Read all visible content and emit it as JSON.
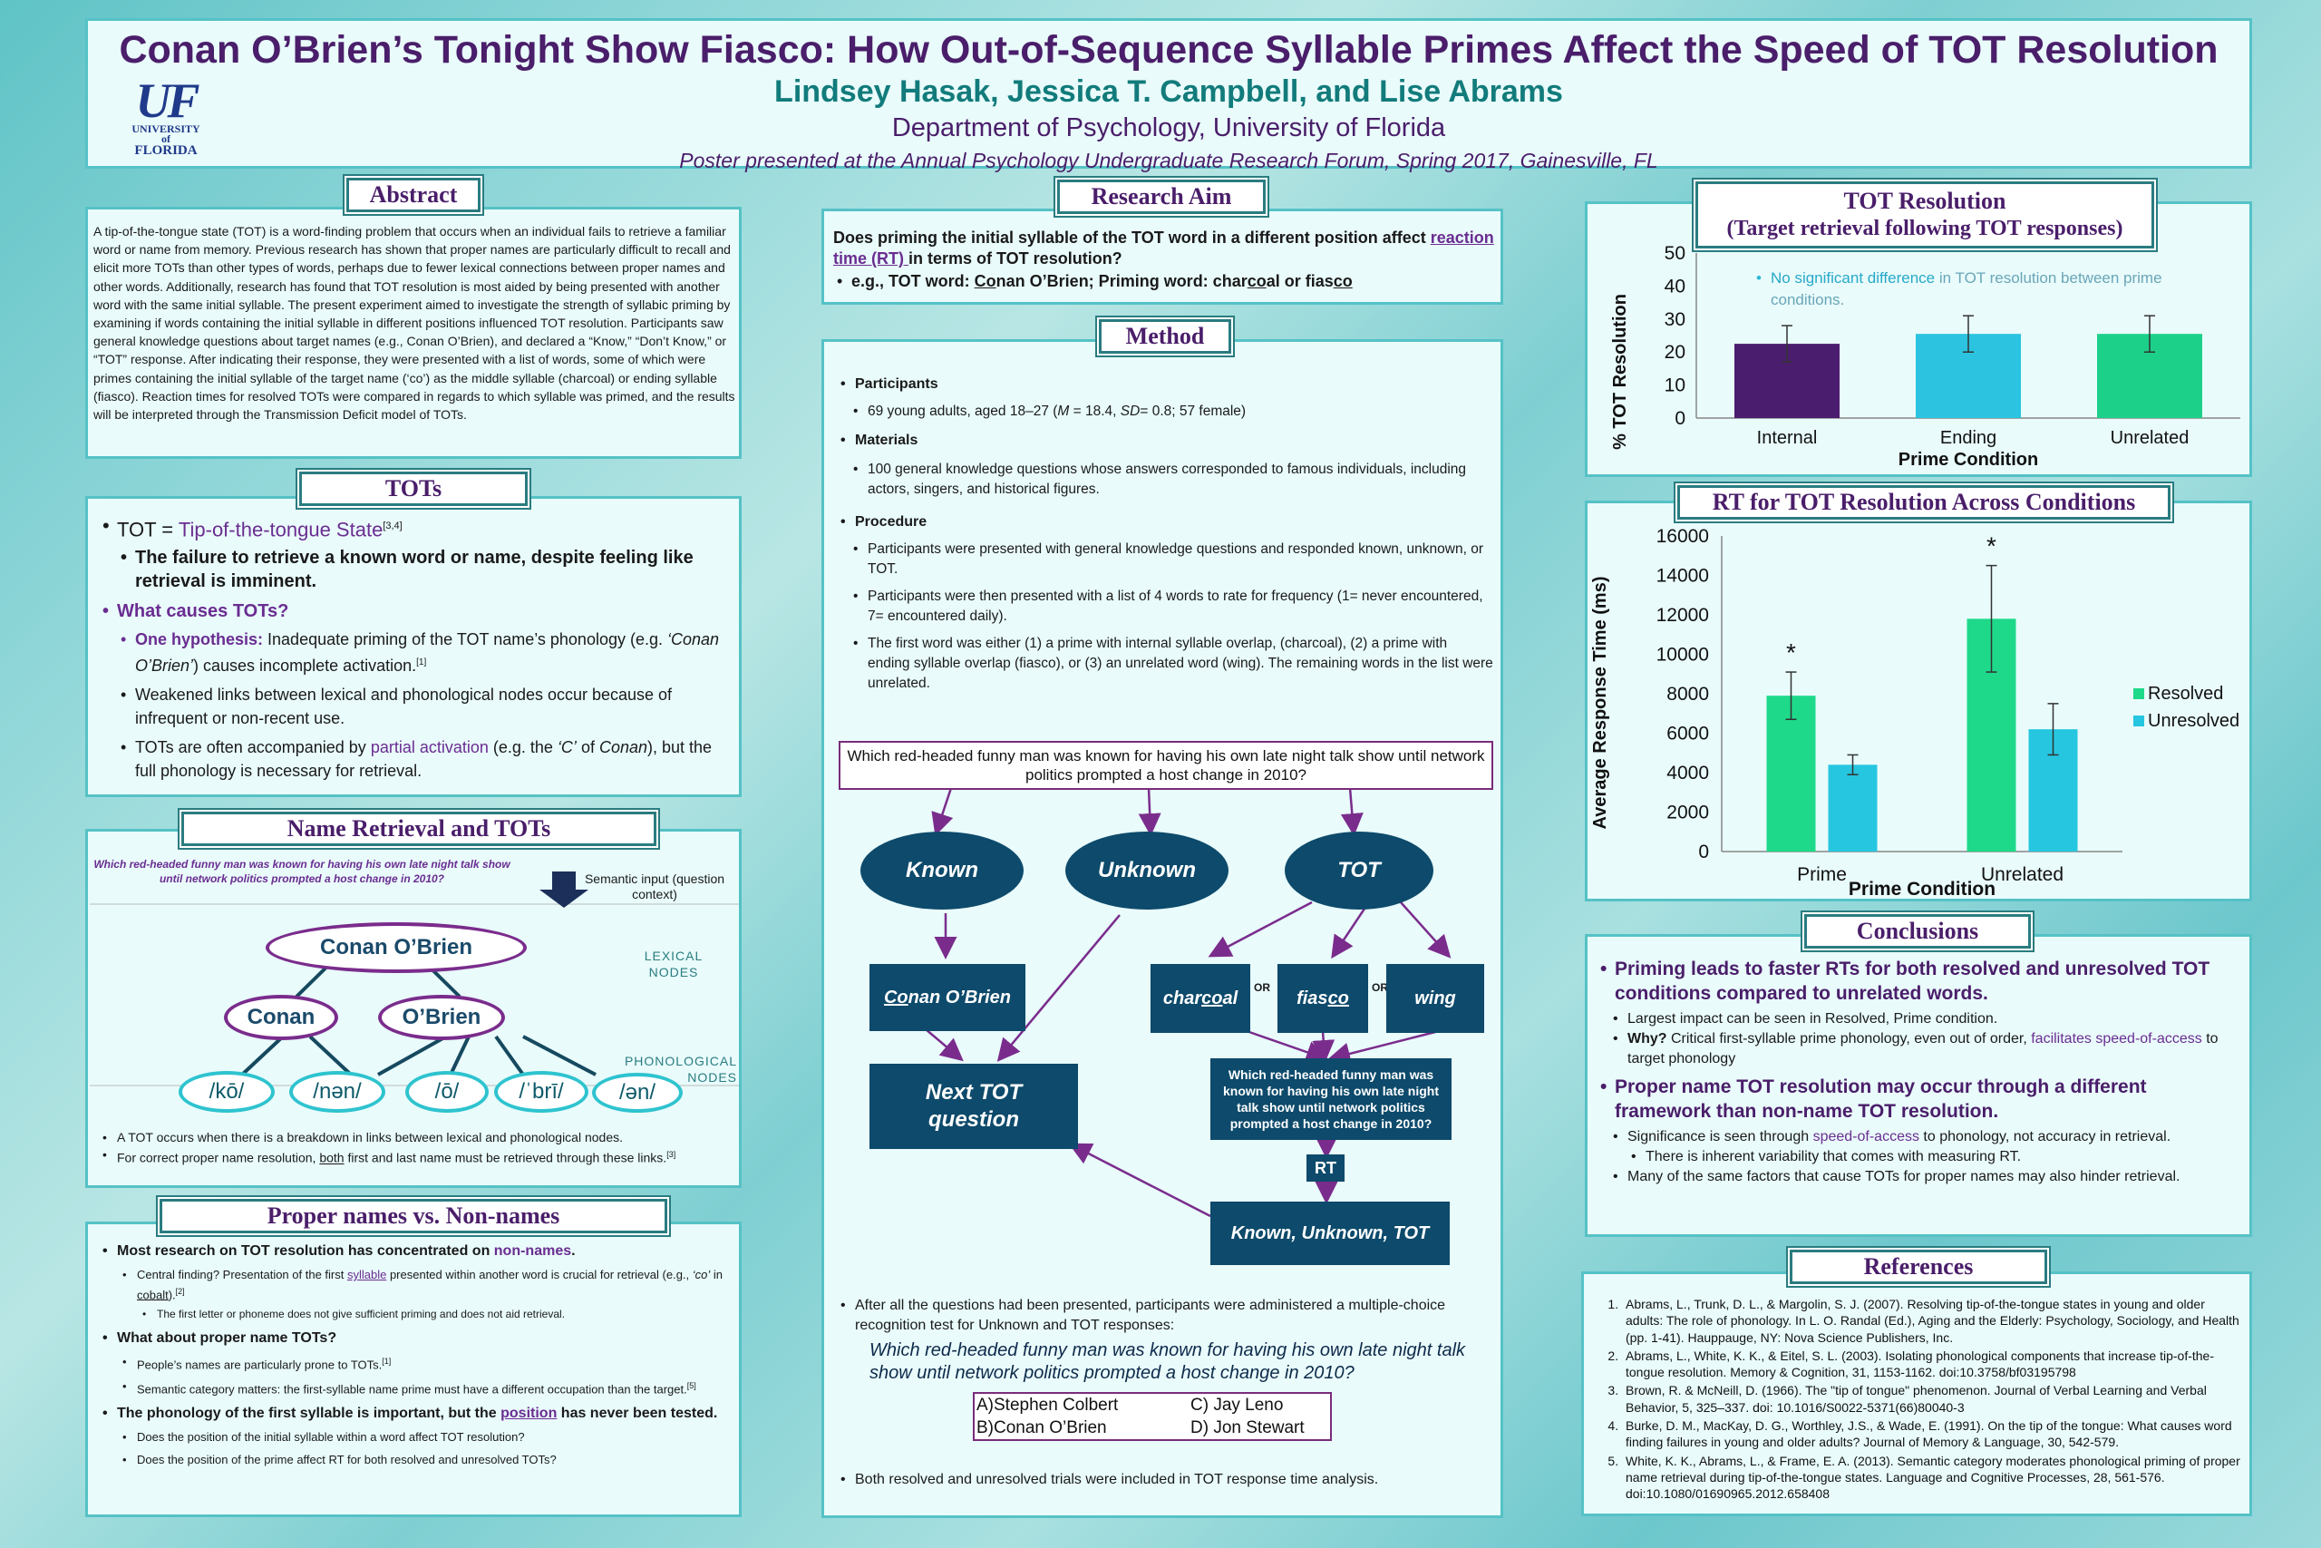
{
  "header": {
    "title": "Conan O’Brien’s Tonight Show Fiasco: How Out-of-Sequence Syllable Primes Affect the Speed of TOT Resolution",
    "authors": "Lindsey Hasak, Jessica T. Campbell, and Lise Abrams",
    "department": "Department of Psychology, University of Florida",
    "presented": "Poster presented at the Annual Psychology Undergraduate Research Forum, Spring 2017, Gainesville, FL",
    "logo": {
      "big": "UF",
      "line1": "UNIVERSITY of",
      "line2": "FLORIDA"
    }
  },
  "abstract": {
    "title": "Abstract",
    "text": "A tip-of-the-tongue state (TOT) is a word-finding problem that occurs when an individual fails to retrieve a familiar word or name from memory. Previous research has shown that proper names are particularly difficult to recall and elicit more TOTs than other types of words, perhaps due to fewer lexical connections between proper names and other words. Additionally, research has found that TOT resolution is most aided by being presented with another word with the same initial syllable. The present experiment aimed to investigate the strength of syllabic priming by examining if words containing the initial syllable in different positions influenced TOT resolution. Participants saw general knowledge questions about target names (e.g., Conan O’Brien), and declared a “Know,” “Don’t Know,” or “TOT” response. After indicating their response, they were presented with a list of words, some of which were primes containing the initial syllable of the target name (‘co’) as the middle syllable (charcoal) or ending syllable (fiasco). Reaction times for resolved TOTs were compared in regards to which syllable was primed, and the results will be interpreted through the Transmission Deficit model of TOTs."
  },
  "tots": {
    "title": "TOTs",
    "def_label": "TOT = ",
    "def_term": "Tip-of-the-tongue State",
    "def_ref": "[3,4]",
    "def_sub": "The failure to retrieve a known word or name, despite feeling like retrieval is imminent.",
    "causes": "What causes TOTs?",
    "hyp_label": "One hypothesis:",
    "hyp_a": " Inadequate priming of the TOT name’s phonology (e.g. ",
    "hyp_example": "‘Conan O’Brien’",
    "hyp_b": ") causes incomplete activation.",
    "hyp_ref": "[1]",
    "weak": "Weakened links between lexical and phonological nodes occur because of infrequent or non-recent use.",
    "partial_a": "TOTs are often accompanied by ",
    "partial_term": "partial activation",
    "partial_b": " (e.g. the ",
    "partial_c": "‘C’",
    "partial_d": " of ",
    "partial_e": "Conan",
    "partial_f": "), but the full phonology is necessary for retrieval."
  },
  "name_retrieval": {
    "title": "Name Retrieval and TOTs",
    "question": "Which red-headed funny man was known for having his own late night talk show until network politics prompted a host change in 2010?",
    "semantic_label": "Semantic input (question context)",
    "lexical_label": "LEXICAL NODES",
    "phon_label": "PHONOLOGICAL NODES",
    "top_node": "Conan O’Brien",
    "mid_nodes": [
      "Conan",
      "O’Brien"
    ],
    "phon_nodes": [
      "/kō/",
      "/nən/",
      "/ō/",
      "/ˈbrī/",
      "/ən/"
    ],
    "bullet1": "A TOT occurs when there is a breakdown in links between lexical and phonological nodes.",
    "bullet2_a": "For correct proper name resolution, ",
    "bullet2_b": "both",
    "bullet2_c": " first and last name must be retrieved through these links.",
    "bullet2_ref": "[3]"
  },
  "proper_names": {
    "title": "Proper names vs. Non-names",
    "b1_a": "Most research on TOT resolution has concentrated on ",
    "b1_b": "non-names",
    "b1_c": ".",
    "b1_sub_a": "Central finding? Presentation of the first ",
    "b1_sub_b": "syllable",
    "b1_sub_c": " presented within another word is crucial for retrieval (e.g., ",
    "b1_sub_d": "‘co’",
    "b1_sub_e": " in ",
    "b1_sub_f": "cobalt",
    "b1_sub_g": ").",
    "b1_sub_ref": "[2]",
    "b1_subsub": "The first letter or phoneme does not give sufficient priming and does not aid retrieval.",
    "b2": "What about proper name TOTs?",
    "b2_sub1": "People’s names are particularly prone to TOTs.",
    "b2_sub1_ref": "[1]",
    "b2_sub2": "Semantic category matters: the first-syllable name prime must have a different occupation than the target.",
    "b2_sub2_ref": "[5]",
    "b3_a": "The phonology of the first syllable is important, but the ",
    "b3_b": "position",
    "b3_c": " has never been tested.",
    "b3_sub1": "Does the position of the initial syllable within a word affect TOT resolution?",
    "b3_sub2": "Does the position of the prime affect RT for both resolved and unresolved TOTs?"
  },
  "research_aim": {
    "title": "Research Aim",
    "q_a": "Does priming the initial syllable of the TOT word in a different position affect ",
    "q_b": "reaction time (RT) ",
    "q_c": "in terms of TOT resolution?",
    "eg_a": "e.g., TOT word: ",
    "eg_b": "Co",
    "eg_c": "nan O’Brien; Priming word: char",
    "eg_d": "co",
    "eg_e": "al or fias",
    "eg_f": "co"
  },
  "method": {
    "title": "Method",
    "participants_h": "Participants",
    "participants_a": "69 young adults, aged 18–27 (",
    "participants_m": "M",
    "participants_b": " = 18.4, ",
    "participants_sd": "SD",
    "participants_c": "= 0.8; 57 female)",
    "materials_h": "Materials",
    "materials": "100 general knowledge questions whose answers corresponded to famous individuals, including actors, singers, and historical figures.",
    "procedure_h": "Procedure",
    "proc1": "Participants were presented with general knowledge questions and responded known, unknown, or TOT.",
    "proc2": "Participants were then presented with a list of 4 words to rate for frequency (1= never encountered, 7= encountered daily).",
    "proc3": "The first word was either (1) a prime with internal syllable overlap, (charcoal), (2) a prime with ending syllable overlap (fiasco), or (3) an unrelated word (wing). The remaining words in the list were unrelated.",
    "flow_question": "Which red-headed funny man was known for having his own late night talk show until network politics prompted a host change in 2010?",
    "flow_known": "Known",
    "flow_unknown": "Unknown",
    "flow_tot": "TOT",
    "flow_conan_a": "Co",
    "flow_conan_b": "nan O’Brien",
    "flow_next": "Next TOT question",
    "flow_charcoal_a": "char",
    "flow_charcoal_b": "co",
    "flow_charcoal_c": "al",
    "flow_fiasco_a": "fias",
    "flow_fiasco_b": "co",
    "flow_wing": "wing",
    "flow_or": "OR",
    "flow_question2": "Which red-headed funny man was known for having his own late night talk show until network politics prompted a host change in 2010?",
    "flow_rt": "RT",
    "flow_final": "Known, Unknown, TOT",
    "after": "After all the questions had been presented, participants were administered a multiple-choice recognition test for Unknown and TOT responses:",
    "mc_question": "Which red-headed funny man was known for having his own late night talk show until network politics prompted a host change in 2010?",
    "mc_options": [
      "A)Stephen Colbert",
      "C) Jay Leno",
      "B)Conan O’Brien",
      "D) Jon Stewart"
    ],
    "final_bullet": "Both resolved and unresolved trials were included in TOT response time analysis."
  },
  "tot_resolution": {
    "title": "TOT Resolution",
    "subtitle": "(Target retrieval following TOT responses)",
    "note_a": "No significant difference",
    "note_b": " in TOT resolution between prime conditions.",
    "colors": {
      "Internal": "#4b1d6e",
      "Ending": "#2bc3e0",
      "Unrelated": "#1dd08a"
    }
  },
  "rt_chart": {
    "title": "RT for TOT Resolution Across Conditions",
    "colors": {
      "Resolved": "#1ed98a",
      "Unresolved": "#26c6e0"
    }
  },
  "chart_data": [
    {
      "type": "bar",
      "title": "",
      "categories": [
        "Internal",
        "Ending",
        "Unrelated"
      ],
      "values": [
        22.5,
        25.5,
        25.5
      ],
      "errors": [
        5.5,
        5.5,
        5.5
      ],
      "xlabel": "Prime Condition",
      "ylabel": "% TOT Resolution",
      "ylim": [
        0,
        50
      ],
      "yticks": [
        0,
        10,
        20,
        30,
        40,
        50
      ]
    },
    {
      "type": "bar",
      "title": "",
      "categories": [
        "Prime",
        "Unrelated"
      ],
      "series": [
        {
          "name": "Resolved",
          "values": [
            7900,
            11800
          ],
          "errors": [
            1200,
            2700
          ]
        },
        {
          "name": "Unresolved",
          "values": [
            4400,
            6200
          ],
          "errors": [
            500,
            1300
          ]
        }
      ],
      "significance": [
        "*",
        "*"
      ],
      "xlabel": "Prime Condition",
      "ylabel": "Average Response Time (ms)",
      "ylim": [
        0,
        16000
      ],
      "yticks": [
        0,
        2000,
        4000,
        6000,
        8000,
        10000,
        12000,
        14000,
        16000
      ],
      "legend": "right"
    }
  ],
  "conclusions": {
    "title": "Conclusions",
    "c1": "Priming leads to faster RTs for both resolved and unresolved TOT conditions compared to unrelated words.",
    "c1_s1": "Largest impact can be seen in Resolved, Prime condition.",
    "c1_s2_a": "Why?",
    "c1_s2_b": " Critical first-syllable prime phonology, even out of order, ",
    "c1_s2_c": "facilitates speed-of-access",
    "c1_s2_d": " to target phonology",
    "c2": "Proper name TOT resolution may occur through a different framework than non-name TOT resolution.",
    "c2_s1_a": "Significance is seen through ",
    "c2_s1_b": "speed-of-access",
    "c2_s1_c": " to phonology, not accuracy in retrieval.",
    "c2_s1_sub": "There is inherent variability that comes with measuring RT.",
    "c2_s2": "Many of the same factors that cause TOTs for proper names may also hinder retrieval."
  },
  "references": {
    "title": "References",
    "items": [
      "Abrams, L., Trunk, D. L., & Margolin, S. J. (2007). Resolving tip-of-the-tongue states in young and older adults: The role of phonology. In L. O. Randal (Ed.), Aging and the Elderly: Psychology, Sociology, and Health (pp. 1-41). Hauppauge, NY: Nova Science Publishers, Inc.",
      "Abrams, L., White, K. K., & Eitel, S. L. (2003). Isolating phonological components that increase tip-of-the-tongue resolution. Memory & Cognition, 31, 1153-1162. doi:10.3758/bf03195798",
      "Brown, R. & McNeill, D. (1966). The \"tip of tongue\" phenomenon. Journal of Verbal Learning and Verbal Behavior, 5, 325–337. doi: 10.1016/S0022-5371(66)80040-3",
      "Burke, D. M., MacKay, D. G., Worthley, J.S., & Wade, E. (1991). On the tip of the tongue: What causes word finding failures in young and older adults? Journal of Memory & Language, 30, 542-579.",
      "White, K. K., Abrams, L., & Frame, E. A. (2013). Semantic category moderates phonological priming of proper name retrieval during tip-of-the-tongue states. Language and Cognitive Processes, 28, 561-576. doi:10.1080/01690965.2012.658408"
    ]
  }
}
